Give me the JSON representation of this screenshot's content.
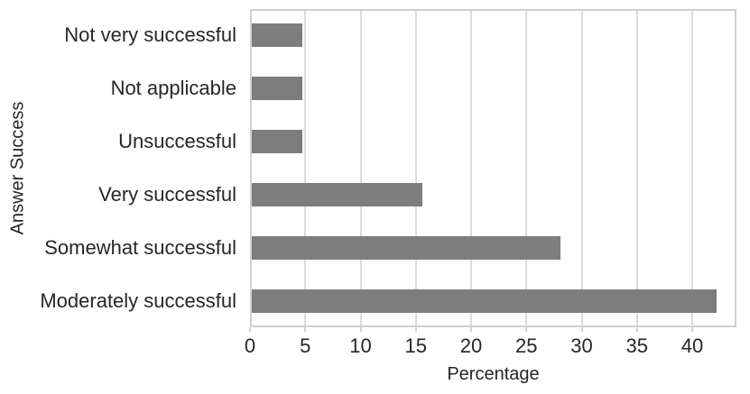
{
  "chart_data": {
    "type": "bar",
    "orientation": "horizontal",
    "title": "",
    "xlabel": "Percentage",
    "ylabel": "Answer Success",
    "categories": [
      "Not very successful",
      "Not applicable",
      "Unsuccessful",
      "Very successful",
      "Somewhat successful",
      "Moderately successful"
    ],
    "values": [
      4.7,
      4.7,
      4.7,
      15.6,
      28.1,
      42.2
    ],
    "xlim": [
      0,
      44
    ],
    "xticks": [
      0,
      5,
      10,
      15,
      20,
      25,
      30,
      35,
      40
    ],
    "grid": "vertical-only",
    "legend": "none",
    "colors": {
      "bar": "#7d7d7d",
      "gridline": "#dcdcdc",
      "plot_border": "#d0d0d0",
      "text": "#262626",
      "background": "#ffffff"
    }
  }
}
